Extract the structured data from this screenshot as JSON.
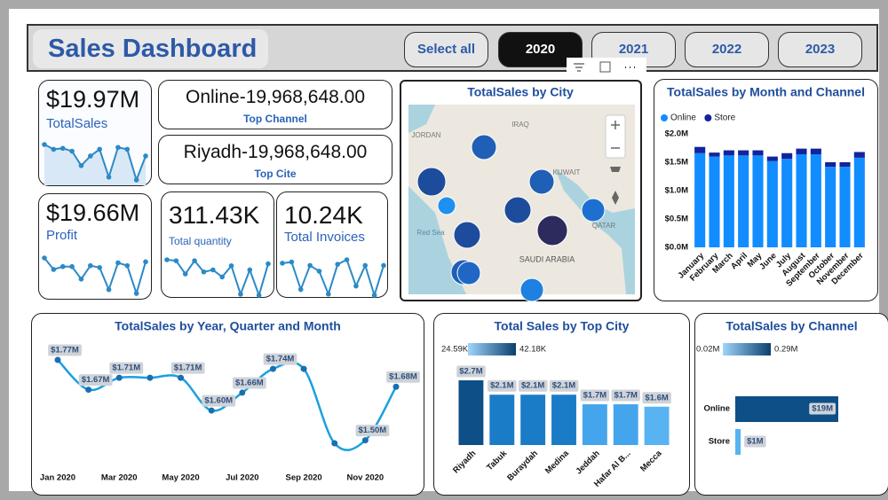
{
  "header": {
    "title": "Sales Dashboard",
    "buttons": [
      "Select all",
      "2020",
      "2021",
      "2022",
      "2023"
    ],
    "selected": 1
  },
  "kpis": [
    {
      "value": "$19.97M",
      "label": "TotalSales",
      "spark": [
        47,
        42,
        43,
        40,
        25,
        35,
        42,
        13,
        44,
        42,
        10,
        35
      ]
    },
    {
      "value": "Online-19,968,648.00",
      "label": "Top Channel"
    },
    {
      "value": "Riyadh-19,968,648.00",
      "label": "Top Cite"
    },
    {
      "value": "$19.66M",
      "label": "Profit",
      "spark": [
        42,
        30,
        33,
        33,
        20,
        34,
        32,
        9,
        37,
        34,
        5,
        38
      ]
    },
    {
      "value": "311.43K",
      "label": "Total quantity",
      "spark": [
        44,
        43,
        30,
        43,
        32,
        34,
        27,
        38,
        10,
        34,
        9,
        40
      ]
    },
    {
      "value": "10.24K",
      "label": "Total Invoices",
      "spark": [
        39,
        40,
        16,
        37,
        32,
        12,
        38,
        42,
        19,
        37,
        11,
        37
      ]
    }
  ],
  "map": {
    "title": "TotalSales by City",
    "labels": [
      "IRAQ",
      "JORDAN",
      "KUWAIT",
      "QATAR",
      "Red Sea",
      "SAUDI ARABIA"
    ]
  },
  "chart_data": [
    {
      "type": "bar",
      "stacked": true,
      "title": "TotalSales by Month and Channel",
      "legend": "top-left",
      "categories": [
        "January",
        "February",
        "March",
        "April",
        "May",
        "June",
        "July",
        "August",
        "September",
        "October",
        "November",
        "December"
      ],
      "series": [
        {
          "name": "Online",
          "color": "#118dff",
          "values": [
            1660000,
            1600000,
            1620000,
            1620000,
            1620000,
            1520000,
            1560000,
            1640000,
            1640000,
            1420000,
            1420000,
            1580000
          ]
        },
        {
          "name": "Store",
          "color": "#12239e",
          "values": [
            110000,
            70000,
            90000,
            90000,
            90000,
            80000,
            100000,
            100000,
            100000,
            80000,
            80000,
            100000
          ]
        }
      ],
      "ylim": [
        0,
        2000000
      ],
      "yticks": [
        {
          "value": 0,
          "label": "$0.0M"
        },
        {
          "value": 500000,
          "label": "$0.5M"
        },
        {
          "value": 1000000,
          "label": "$1.0M"
        },
        {
          "value": 1500000,
          "label": "$1.5M"
        },
        {
          "value": 2000000,
          "label": "$2.0M"
        }
      ]
    },
    {
      "type": "line",
      "title": "TotalSales by Year, Quarter and Month",
      "color": "#1aa0e0",
      "categories": [
        "Jan 2020",
        null,
        "Mar 2020",
        null,
        "May 2020",
        null,
        "Jul 2020",
        null,
        "Sep 2020",
        null,
        "Nov 2020",
        null
      ],
      "values": [
        1770000,
        1670000,
        1710000,
        1710000,
        1710000,
        1600000,
        1660000,
        1740000,
        1740000,
        1490000,
        1500000,
        1680000
      ],
      "value_labels": [
        "$1.77M",
        "$1.67M",
        "$1.71M",
        null,
        "$1.71M",
        "$1.60M",
        "$1.66M",
        "$1.74M",
        null,
        null,
        "$1.50M",
        "$1.68M"
      ]
    },
    {
      "type": "bar",
      "title": "Total Sales by Top City",
      "color_scale": {
        "min": "24.59K",
        "max": "42.18K",
        "colors": [
          "#9fd4fb",
          "#0b3f6e"
        ]
      },
      "categories": [
        "Riyadh",
        "Tabuk",
        "Buraydah",
        "Medina",
        "Jeddah",
        "Hafar Al B...",
        "Mecca"
      ],
      "values": [
        2700000,
        2100000,
        2100000,
        2100000,
        1700000,
        1700000,
        1600000
      ],
      "value_labels": [
        "$2.7M",
        "$2.1M",
        "$2.1M",
        "$2.1M",
        "$1.7M",
        "$1.7M",
        "$1.6M"
      ],
      "colors": [
        "#0d4f86",
        "#1a7cc7",
        "#1a7cc7",
        "#1a7cc7",
        "#45a5ec",
        "#45a5ec",
        "#58b3f3"
      ]
    },
    {
      "type": "bar",
      "orientation": "horizontal",
      "title": "TotalSales by Channel",
      "color_scale": {
        "min": "0.02M",
        "max": "0.29M",
        "colors": [
          "#9fd4fb",
          "#0b3f6e"
        ]
      },
      "categories": [
        "Online",
        "Store"
      ],
      "values": [
        19000000,
        1000000
      ],
      "value_labels": [
        "$19M",
        "$1M"
      ],
      "colors": [
        "#0d4f86",
        "#58b3f3"
      ]
    }
  ]
}
